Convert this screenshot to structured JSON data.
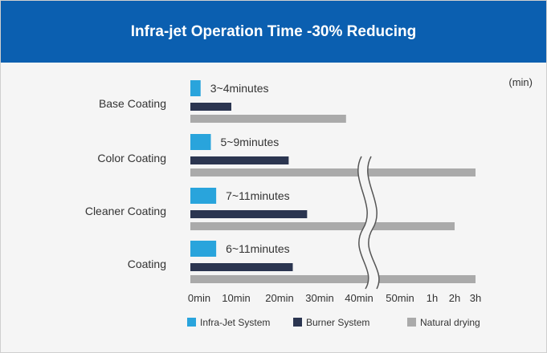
{
  "header": {
    "title": "Infra-jet Operation Time -30% Reducing"
  },
  "chart_data": {
    "type": "bar",
    "orientation": "horizontal",
    "unit_label": "(min)",
    "categories": [
      "Base Coating",
      "Color Coating",
      "Cleaner Coating",
      "Coating"
    ],
    "x_ticks": [
      "0min",
      "10min",
      "20min",
      "30min",
      "40min",
      "50min",
      "1h",
      "2h",
      "3h"
    ],
    "axis_break": "between 40min and 50min",
    "series": [
      {
        "name": "Infra-Jet System",
        "color": "#29a4dc",
        "values_min": [
          2.5,
          5,
          6.3,
          6.3
        ]
      },
      {
        "name": "Burner System",
        "color": "#2b3550",
        "values_min": [
          10,
          24,
          28.5,
          25
        ]
      },
      {
        "name": "Natural drying",
        "color": "#aaaaaa",
        "values_min": [
          38,
          180,
          120,
          180
        ]
      }
    ],
    "annotations": [
      "3~4minutes",
      "5~9minutes",
      "7~11minutes",
      "6~11minutes"
    ],
    "legend_position": "bottom"
  }
}
